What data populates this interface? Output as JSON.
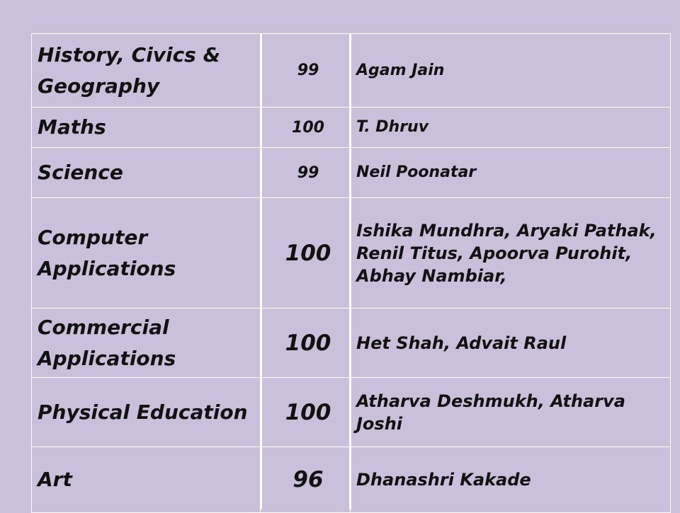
{
  "table": {
    "rows": [
      {
        "subject": "History, Civics & Geography",
        "marks": "99",
        "names": "Agam Jain",
        "marks_size": "small",
        "names_size": "small",
        "height": 104
      },
      {
        "subject": "Maths",
        "marks": "100",
        "names": "T. Dhruv",
        "marks_size": "small",
        "names_size": "small",
        "height": 57
      },
      {
        "subject": "Science",
        "marks": "99",
        "names": "Neil Poonatar",
        "marks_size": "small",
        "names_size": "small",
        "height": 71
      },
      {
        "subject": "Computer Applications",
        "marks": "100",
        "names": "Ishika Mundhra, Aryaki Pathak, Renil Titus, Apoorva Purohit, Abhay Nambiar,",
        "marks_size": "large",
        "names_size": "normal",
        "height": 156
      },
      {
        "subject": "Commercial Applications",
        "marks": "100",
        "names": "Het Shah, Advait Raul",
        "marks_size": "large",
        "names_size": "normal",
        "height": 98
      },
      {
        "subject": "Physical Education",
        "marks": "100",
        "names": "Atharva Deshmukh, Atharva Joshi",
        "marks_size": "large",
        "names_size": "normal",
        "height": 98
      },
      {
        "subject": "Art",
        "marks": "96",
        "names": "Dhanashri Kakade",
        "marks_size": "large",
        "names_size": "normal",
        "height": 93
      }
    ]
  }
}
